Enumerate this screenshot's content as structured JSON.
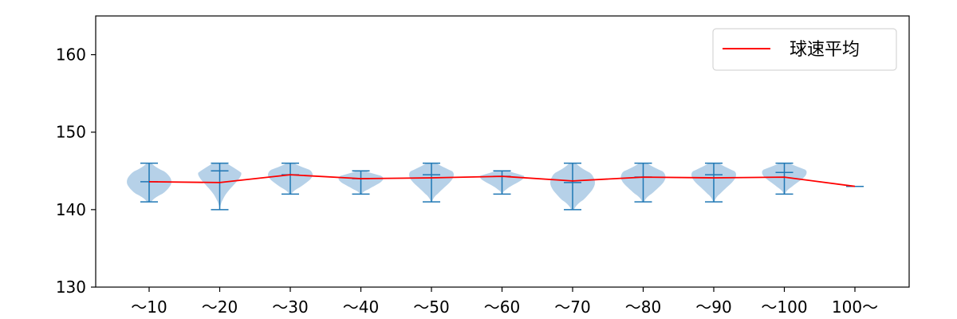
{
  "chart_data": {
    "type": "violin",
    "categories": [
      "〜10",
      "〜20",
      "〜30",
      "〜40",
      "〜50",
      "〜60",
      "〜70",
      "〜80",
      "〜90",
      "〜100",
      "100〜"
    ],
    "ylim": [
      130,
      165
    ],
    "yticks": [
      130,
      140,
      150,
      160
    ],
    "grid": false,
    "legend": {
      "placement": "top-right",
      "entries": [
        "球速平均"
      ]
    },
    "colors": {
      "violin_fill": "#a9c9e4",
      "violin_line": "#1f77b4",
      "mean_line": "#ff0000",
      "axis": "#000000"
    },
    "series": [
      {
        "name": "球速平均",
        "values": [
          143.6,
          143.5,
          144.5,
          144.0,
          144.1,
          144.3,
          143.7,
          144.2,
          144.1,
          144.2,
          143.0
        ]
      }
    ],
    "distribution": [
      {
        "min": 141,
        "max": 146,
        "median": 143.6
      },
      {
        "min": 140,
        "max": 146,
        "median": 145.0
      },
      {
        "min": 142,
        "max": 146,
        "median": 144.5
      },
      {
        "min": 142,
        "max": 145,
        "median": 144.0
      },
      {
        "min": 141,
        "max": 146,
        "median": 144.5
      },
      {
        "min": 142,
        "max": 145,
        "median": 144.3
      },
      {
        "min": 140,
        "max": 146,
        "median": 143.5
      },
      {
        "min": 141,
        "max": 146,
        "median": 144.2
      },
      {
        "min": 141,
        "max": 146,
        "median": 144.5
      },
      {
        "min": 142,
        "max": 146,
        "median": 144.8
      },
      {
        "min": 143,
        "max": 143,
        "median": 143.0
      }
    ]
  }
}
